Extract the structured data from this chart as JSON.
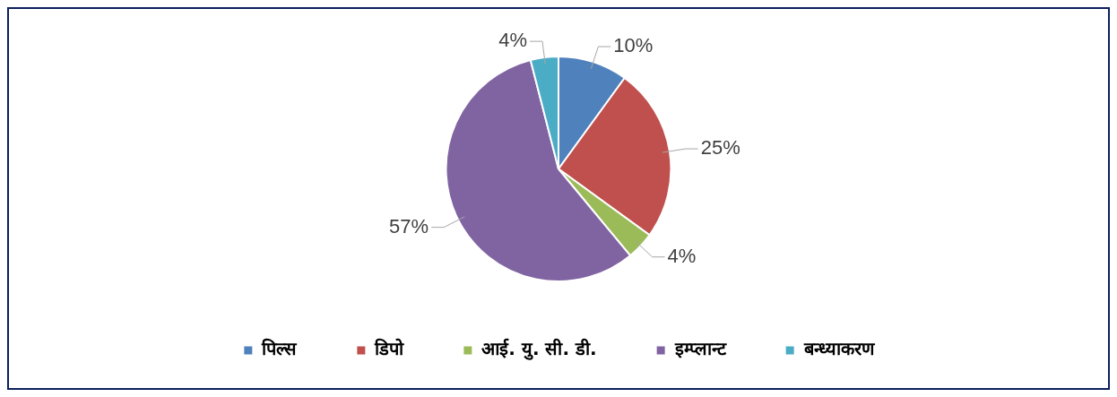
{
  "chart_data": {
    "type": "pie",
    "categories": [
      "पिल्स",
      "डिपो",
      "आई. यु. सी. डी.",
      "इम्प्लान्ट",
      "बन्ध्याकरण"
    ],
    "values": [
      10,
      25,
      4,
      57,
      4
    ],
    "colors": [
      "#4f81bd",
      "#c0504d",
      "#9bbb59",
      "#8064a2",
      "#4bacc6"
    ],
    "value_labels": [
      "10%",
      "25%",
      "4%",
      "57%",
      "4%"
    ],
    "legend": "bottom"
  }
}
